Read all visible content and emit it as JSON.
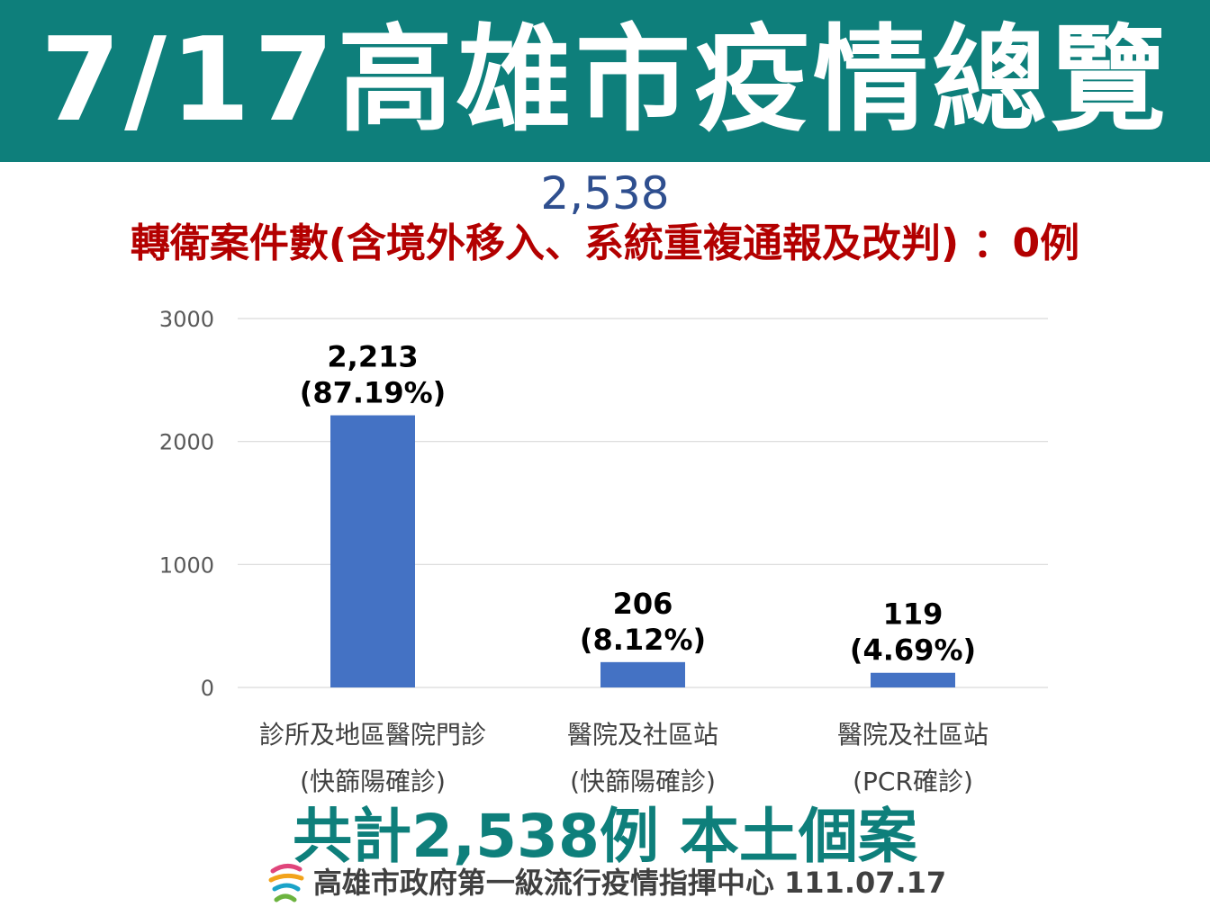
{
  "header": {
    "title": "7/17高雄市疫情總覽",
    "total_count": "2,538",
    "transfer_line": "轉衛案件數(含境外移入、系統重複通報及改判) ：0例"
  },
  "chart_data": {
    "type": "bar",
    "categories": [
      [
        "診所及地區醫院門診",
        "(快篩陽確診)"
      ],
      [
        "醫院及社區站",
        "(快篩陽確診)"
      ],
      [
        "醫院及社區站",
        "(PCR確診)"
      ]
    ],
    "values": [
      2213,
      206,
      119
    ],
    "data_labels": [
      [
        "2,213",
        "(87.19%)"
      ],
      [
        "206",
        "(8.12%)"
      ],
      [
        "119",
        "(4.69%)"
      ]
    ],
    "yticks": [
      "0",
      "1000",
      "2000",
      "3000"
    ],
    "ylim": [
      0,
      3000
    ],
    "grid": true,
    "bar_color": "#4472c4"
  },
  "summary": "共計2,538例 本土個案",
  "footer": {
    "logo_icon": "kaohsiung-city-logo-icon",
    "text": "高雄市政府第一級流行疫情指揮中心 111.07.17"
  },
  "colors": {
    "banner": "#0e7f7b",
    "title_text": "#ffffff",
    "total": "#2f4f8f",
    "transfer": "#b30000",
    "summary": "#0e7f7b"
  }
}
